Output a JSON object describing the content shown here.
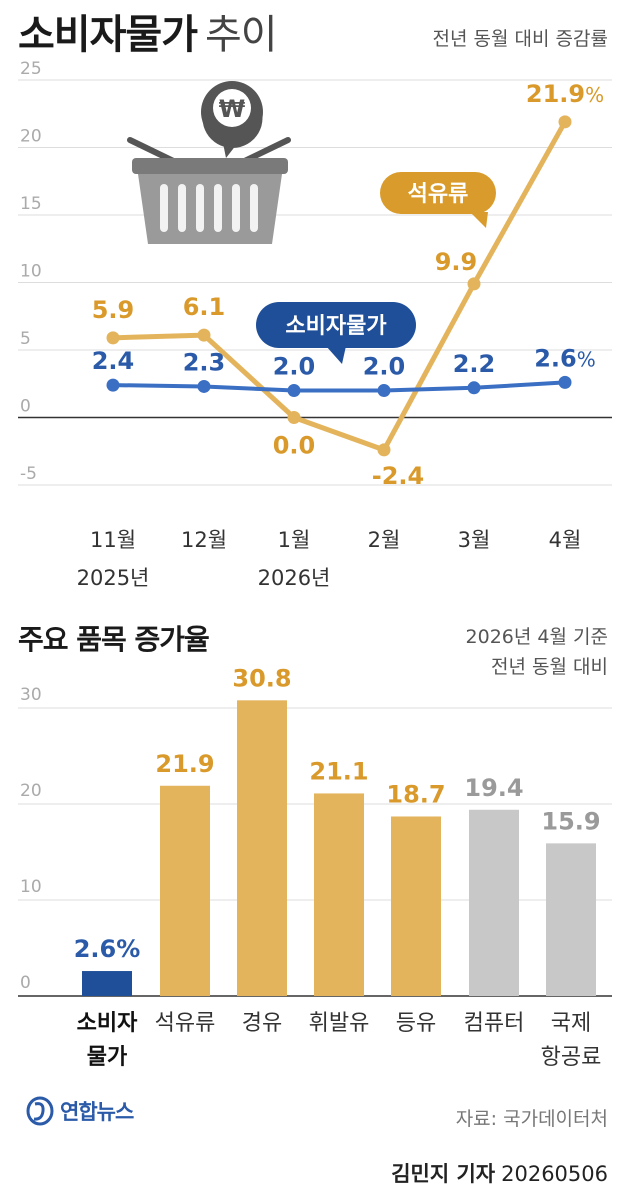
{
  "header": {
    "title": "소비자물가",
    "title_suffix": "추이",
    "subtitle": "전년 동월 대비 증감률"
  },
  "colors": {
    "oil": "#e4b45c",
    "oil_label": "#d99a2b",
    "oil_badge": "#d89b2c",
    "cpi": "#3a6fc4",
    "cpi_label": "#2a5aa8",
    "cpi_badge": "#1f4f99",
    "gray_bar": "#c8c8c8",
    "gray_label": "#9a9a9a",
    "grid": "#dddddd",
    "axis_text": "#aaaaaa"
  },
  "chart_data": [
    {
      "type": "line",
      "x_top": [
        "11월",
        "12월",
        "1월",
        "2월",
        "3월",
        "4월"
      ],
      "x_bottom": [
        "2025년",
        "",
        "2026년",
        "",
        "",
        ""
      ],
      "y_ticks": [
        25,
        20,
        15,
        10,
        5,
        0,
        -5
      ],
      "ylim": [
        -5,
        25
      ],
      "grid": true,
      "series": [
        {
          "name": "석유류",
          "key": "oil",
          "values": [
            5.9,
            6.1,
            0.0,
            -2.4,
            9.9,
            21.9
          ],
          "labels": [
            "5.9",
            "6.1",
            "0.0",
            "-2.4",
            "9.9",
            "21.9"
          ],
          "last_unit": "%"
        },
        {
          "name": "소비자물가",
          "key": "cpi",
          "values": [
            2.4,
            2.3,
            2.0,
            2.0,
            2.2,
            2.6
          ],
          "labels": [
            "2.4",
            "2.3",
            "2.0",
            "2.0",
            "2.2",
            "2.6"
          ],
          "last_unit": "%"
        }
      ],
      "icon": "shopping-basket-won-icon"
    },
    {
      "type": "bar",
      "title": "주요 품목 증가율",
      "basis": [
        "2026년 4월 기준",
        "전년 동월 대비"
      ],
      "y_ticks": [
        30,
        20,
        10,
        0
      ],
      "ylim": [
        0,
        30
      ],
      "grid": true,
      "categories": [
        [
          "소비자",
          "물가"
        ],
        [
          "석유류"
        ],
        [
          "경유"
        ],
        [
          "휘발유"
        ],
        [
          "등유"
        ],
        [
          "컴퓨터"
        ],
        [
          "국제",
          "항공료"
        ]
      ],
      "values": [
        2.6,
        21.9,
        30.8,
        21.1,
        18.7,
        19.4,
        15.9
      ],
      "labels": [
        "2.6%",
        "21.9",
        "30.8",
        "21.1",
        "18.7",
        "19.4",
        "15.9"
      ],
      "bar_colors": [
        "cpi_badge",
        "oil",
        "oil",
        "oil",
        "oil",
        "gray_bar",
        "gray_bar"
      ],
      "label_colors": [
        "cpi_label",
        "oil_label",
        "oil_label",
        "oil_label",
        "oil_label",
        "gray_label",
        "gray_label"
      ],
      "category_colors": [
        "#111111",
        "#333333",
        "#333333",
        "#333333",
        "#333333",
        "#333333",
        "#333333"
      ],
      "category_bold": [
        true,
        false,
        false,
        false,
        false,
        false,
        false
      ]
    }
  ],
  "footer": {
    "logo_text": "연합뉴스",
    "source": "자료: 국가데이터처",
    "reporter": "김민지 기자",
    "date": "20260506"
  }
}
